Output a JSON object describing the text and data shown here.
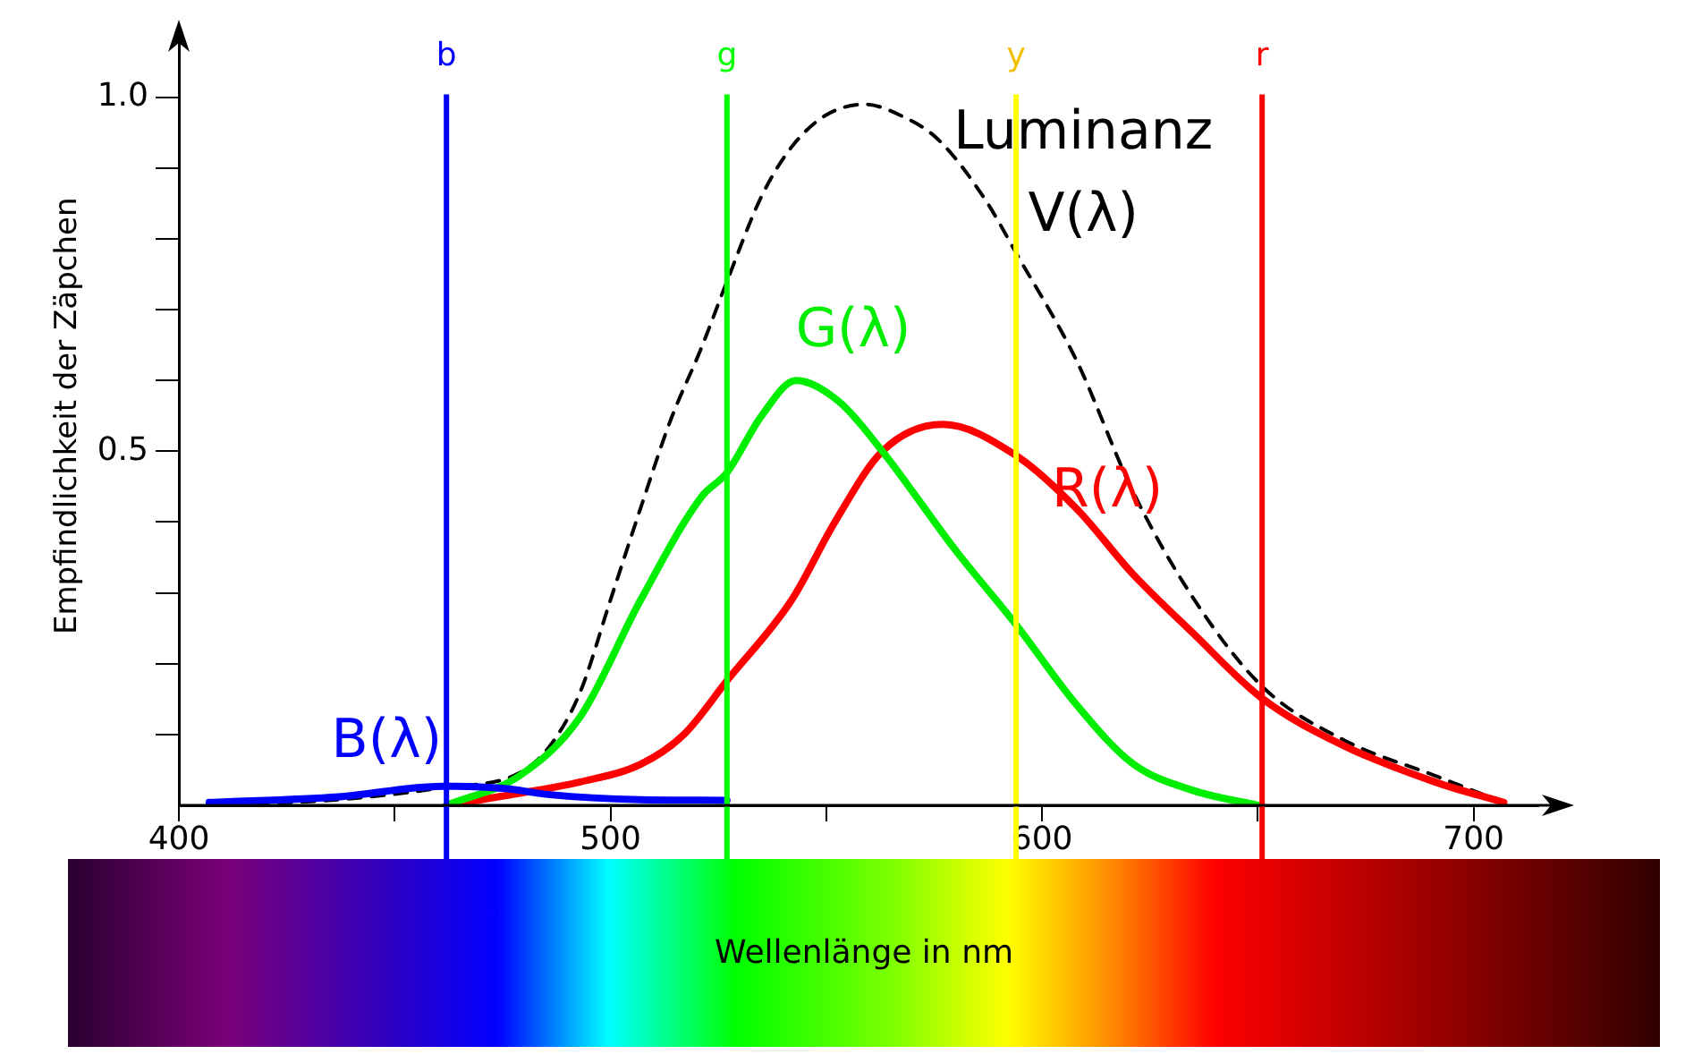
{
  "chart_data": {
    "type": "line",
    "xlabel": "Wellenlänge in nm",
    "ylabel": "Empfindlichkeit der Zäpchen",
    "xlim": [
      400,
      715
    ],
    "xticks": [
      400,
      {
        "value": 450,
        "label": null
      },
      500,
      {
        "value": 550,
        "label": null
      },
      600,
      {
        "value": 650,
        "label": null
      },
      700
    ],
    "ylim": [
      0,
      1.1
    ],
    "yticks": [
      {
        "value": 0.1,
        "label": null
      },
      {
        "value": 0.2,
        "label": null
      },
      {
        "value": 0.3,
        "label": null
      },
      {
        "value": 0.4,
        "label": null
      },
      0.5,
      {
        "value": 0.6,
        "label": null
      },
      {
        "value": 0.7,
        "label": null
      },
      {
        "value": 0.8,
        "label": null
      },
      {
        "value": 0.9,
        "label": null
      },
      {
        "value": 1.0,
        "label": "1.0"
      }
    ],
    "grid": false,
    "legend": false,
    "marker": "none",
    "series": [
      {
        "name": "B(λ)",
        "color": "#0000ff",
        "line_style": "solid",
        "x": [
          407,
          437,
          461,
          475,
          486,
          507,
          527
        ],
        "values": [
          0.004,
          0.012,
          0.027,
          0.024,
          0.015,
          0.008,
          0.007
        ]
      },
      {
        "name": "G(λ)",
        "color": "#00ee00",
        "line_style": "solid",
        "x": [
          462,
          479,
          493,
          507,
          521,
          527,
          535,
          543,
          553,
          563,
          580,
          594,
          608,
          621,
          635,
          650
        ],
        "values": [
          0,
          0.042,
          0.125,
          0.29,
          0.435,
          0.47,
          0.55,
          0.6,
          0.57,
          0.5,
          0.36,
          0.255,
          0.142,
          0.059,
          0.021,
          0
        ]
      },
      {
        "name": "R(λ)",
        "color": "#ff0000",
        "line_style": "solid",
        "x": [
          462,
          479,
          493,
          507,
          517,
          527,
          542,
          552,
          563,
          577,
          594,
          608,
          621,
          635,
          651,
          670,
          691,
          707
        ],
        "values": [
          0,
          0.017,
          0.033,
          0.058,
          0.1,
          0.176,
          0.29,
          0.4,
          0.5,
          0.538,
          0.494,
          0.419,
          0.327,
          0.243,
          0.151,
          0.084,
          0.033,
          0.004
        ]
      },
      {
        "name": "Luminanz V(λ)",
        "color": "#000000",
        "line_style": "dashed",
        "x": [
          407,
          437,
          461,
          479,
          486,
          493,
          500,
          507,
          514,
          521,
          527,
          535,
          542,
          550,
          559,
          567,
          576,
          587,
          594,
          608,
          621,
          635,
          651,
          670,
          691,
          707
        ],
        "values": [
          0,
          0.008,
          0.025,
          0.046,
          0.084,
          0.16,
          0.29,
          0.42,
          0.545,
          0.645,
          0.74,
          0.86,
          0.93,
          0.975,
          0.99,
          0.975,
          0.94,
          0.854,
          0.78,
          0.628,
          0.444,
          0.293,
          0.168,
          0.092,
          0.042,
          0.004
        ]
      }
    ],
    "ref_lines": [
      {
        "axis": "x",
        "value": 462,
        "label": "b",
        "color": "#0000ff"
      },
      {
        "axis": "x",
        "value": 527,
        "label": "g",
        "color": "#00ff00"
      },
      {
        "axis": "x",
        "value": 594,
        "label": "y",
        "color": "#ffff00"
      },
      {
        "axis": "x",
        "value": 651,
        "label": "r",
        "color": "#ff0000"
      }
    ]
  }
}
